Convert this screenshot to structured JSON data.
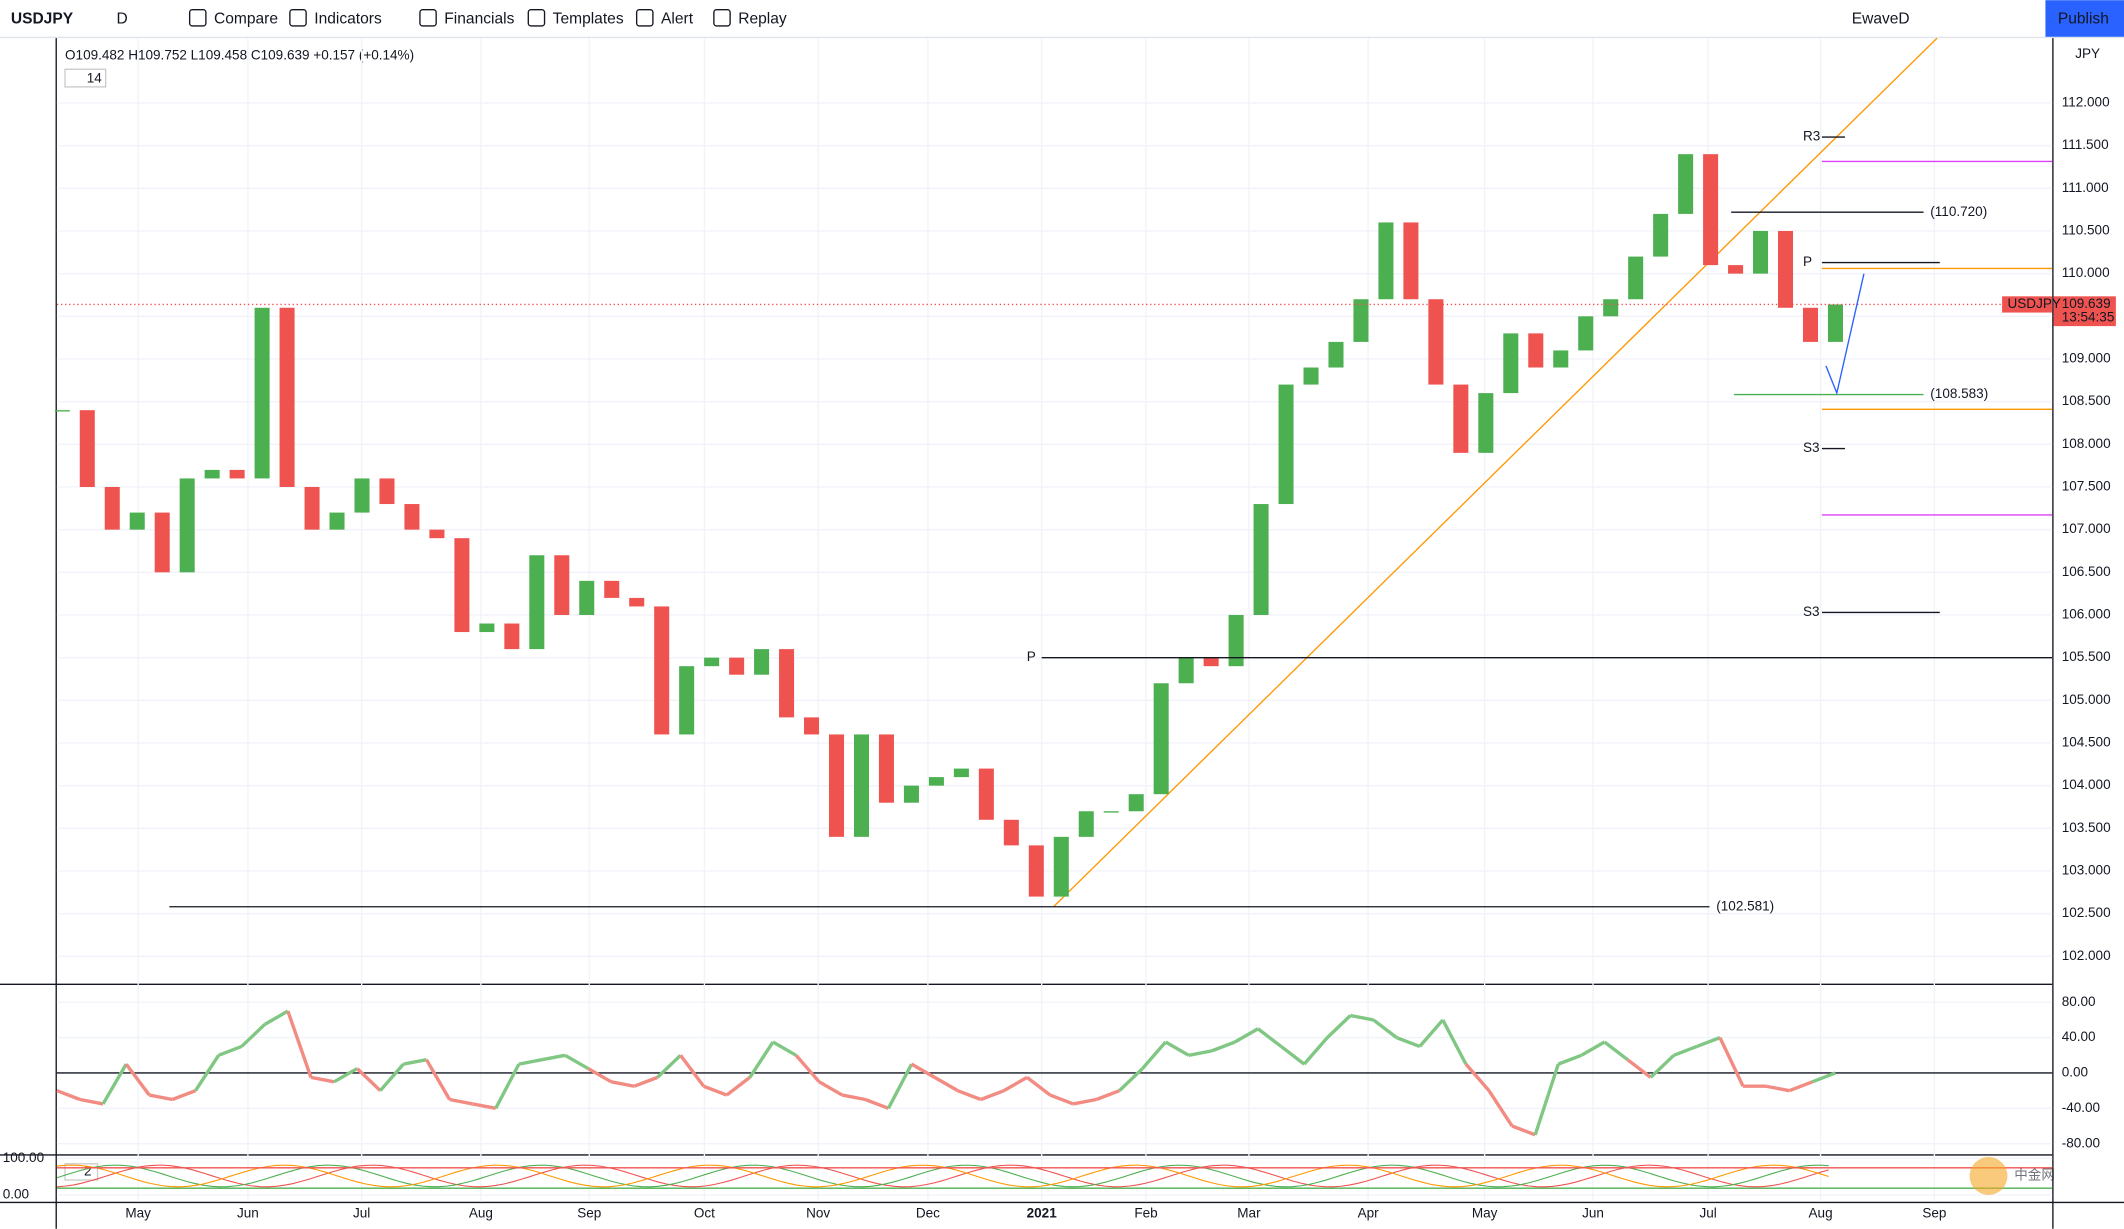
{
  "toolbar": {
    "symbol": "USDJPY",
    "interval": "D",
    "items": [
      "Compare",
      "Indicators",
      "Financials",
      "Templates",
      "Alert",
      "Replay"
    ],
    "layout": "EwaveD",
    "publish": "Publish"
  },
  "chart_data": {
    "type": "candlestick",
    "ohlc": "O109.482 H109.752 L109.458 C109.639 +0.157 (+0.14%)",
    "period": "14",
    "currency": "JPY",
    "up_color": "#4caf50",
    "down_color": "#ef5350",
    "closes": [
      108.4,
      107.5,
      107.0,
      107.2,
      106.5,
      107.6,
      107.7,
      107.6,
      109.6,
      107.5,
      107.0,
      107.2,
      107.6,
      107.3,
      107.0,
      106.9,
      105.8,
      105.9,
      105.6,
      106.7,
      106.0,
      106.4,
      106.2,
      106.1,
      104.6,
      105.4,
      105.5,
      105.3,
      105.6,
      104.8,
      104.6,
      103.4,
      104.6,
      103.8,
      104.0,
      104.1,
      104.2,
      103.6,
      103.3,
      102.7,
      103.4,
      103.7,
      103.7,
      103.9,
      105.2,
      105.5,
      105.4,
      106.0,
      107.3,
      108.7,
      108.9,
      109.2,
      109.7,
      110.6,
      109.7,
      108.7,
      107.9,
      108.6,
      109.3,
      108.9,
      109.1,
      109.5,
      109.7,
      110.2,
      110.7,
      111.4,
      110.1,
      110.0,
      110.5,
      109.6,
      109.2,
      109.639
    ],
    "ylim": [
      101.68,
      112.76
    ],
    "yticks": [
      {
        "value": 102,
        "label": "102.000"
      },
      {
        "value": 102.5,
        "label": "102.500"
      },
      {
        "value": 103,
        "label": "103.000"
      },
      {
        "value": 103.5,
        "label": "103.500"
      },
      {
        "value": 104,
        "label": "104.000"
      },
      {
        "value": 104.5,
        "label": "104.500"
      },
      {
        "value": 105,
        "label": "105.000"
      },
      {
        "value": 105.5,
        "label": "105.500"
      },
      {
        "value": 106,
        "label": "106.000"
      },
      {
        "value": 106.5,
        "label": "106.500"
      },
      {
        "value": 107,
        "label": "107.000"
      },
      {
        "value": 107.5,
        "label": "107.500"
      },
      {
        "value": 108,
        "label": "108.000"
      },
      {
        "value": 108.5,
        "label": "108.500"
      },
      {
        "value": 109,
        "label": "109.000"
      },
      {
        "value": 109.5,
        "label": "109.500"
      },
      {
        "value": 110,
        "label": "110.000"
      },
      {
        "value": 110.5,
        "label": "110.500"
      },
      {
        "value": 111,
        "label": "111.000"
      },
      {
        "value": 111.5,
        "label": "111.500"
      },
      {
        "value": 112,
        "label": "112.000"
      }
    ],
    "last": {
      "value": 109.639,
      "label": "109.639",
      "countdown": "13:54:35"
    },
    "levels": [
      {
        "value": 102.581,
        "label": "(102.581)"
      },
      {
        "value": 110.72,
        "label": "(110.720)"
      },
      {
        "value": 108.583,
        "label": "(108.583)"
      }
    ],
    "pivots": [
      {
        "label": "P",
        "value": 105.5
      },
      {
        "label": "R3",
        "value": 111.6
      },
      {
        "label": "S3",
        "value": 107.95
      },
      {
        "label": "S3",
        "value": 106.03
      },
      {
        "label": "P",
        "value": 110.13
      }
    ],
    "months": [
      "May",
      "Jun",
      "Jul",
      "Aug",
      "Sep",
      "Oct",
      "Nov",
      "Dec",
      "2021",
      "Feb",
      "Mar",
      "Apr",
      "May",
      "Jun",
      "Jul",
      "Aug",
      "Sep"
    ],
    "oscillator": {
      "values": [
        -20,
        -30,
        -35,
        10,
        -25,
        -30,
        -20,
        20,
        30,
        55,
        70,
        -5,
        -10,
        5,
        -20,
        10,
        15,
        -30,
        -35,
        -40,
        10,
        15,
        20,
        5,
        -10,
        -15,
        -5,
        20,
        -15,
        -25,
        -5,
        35,
        20,
        -10,
        -25,
        -30,
        -40,
        10,
        -5,
        -20,
        -30,
        -20,
        -5,
        -25,
        -35,
        -30,
        -20,
        5,
        35,
        20,
        25,
        35,
        50,
        30,
        10,
        40,
        65,
        60,
        40,
        30,
        60,
        10,
        -20,
        -60,
        -70,
        10,
        20,
        35,
        15,
        -5,
        20,
        30,
        40,
        -15,
        -15,
        -20,
        -10,
        0
      ],
      "ylim": [
        -92,
        98
      ],
      "yticks": [
        {
          "value": 80,
          "label": "80.00"
        },
        {
          "value": 40,
          "label": "40.00"
        },
        {
          "value": 0,
          "label": "0.00"
        },
        {
          "value": -40,
          "label": "-40.00"
        },
        {
          "value": -80,
          "label": "-80.00"
        }
      ]
    },
    "lower": {
      "label": "2",
      "yticks": [
        {
          "value": 100,
          "label": "100.00"
        },
        {
          "value": 0,
          "label": "0.00"
        }
      ]
    }
  },
  "watermark": "中金网"
}
